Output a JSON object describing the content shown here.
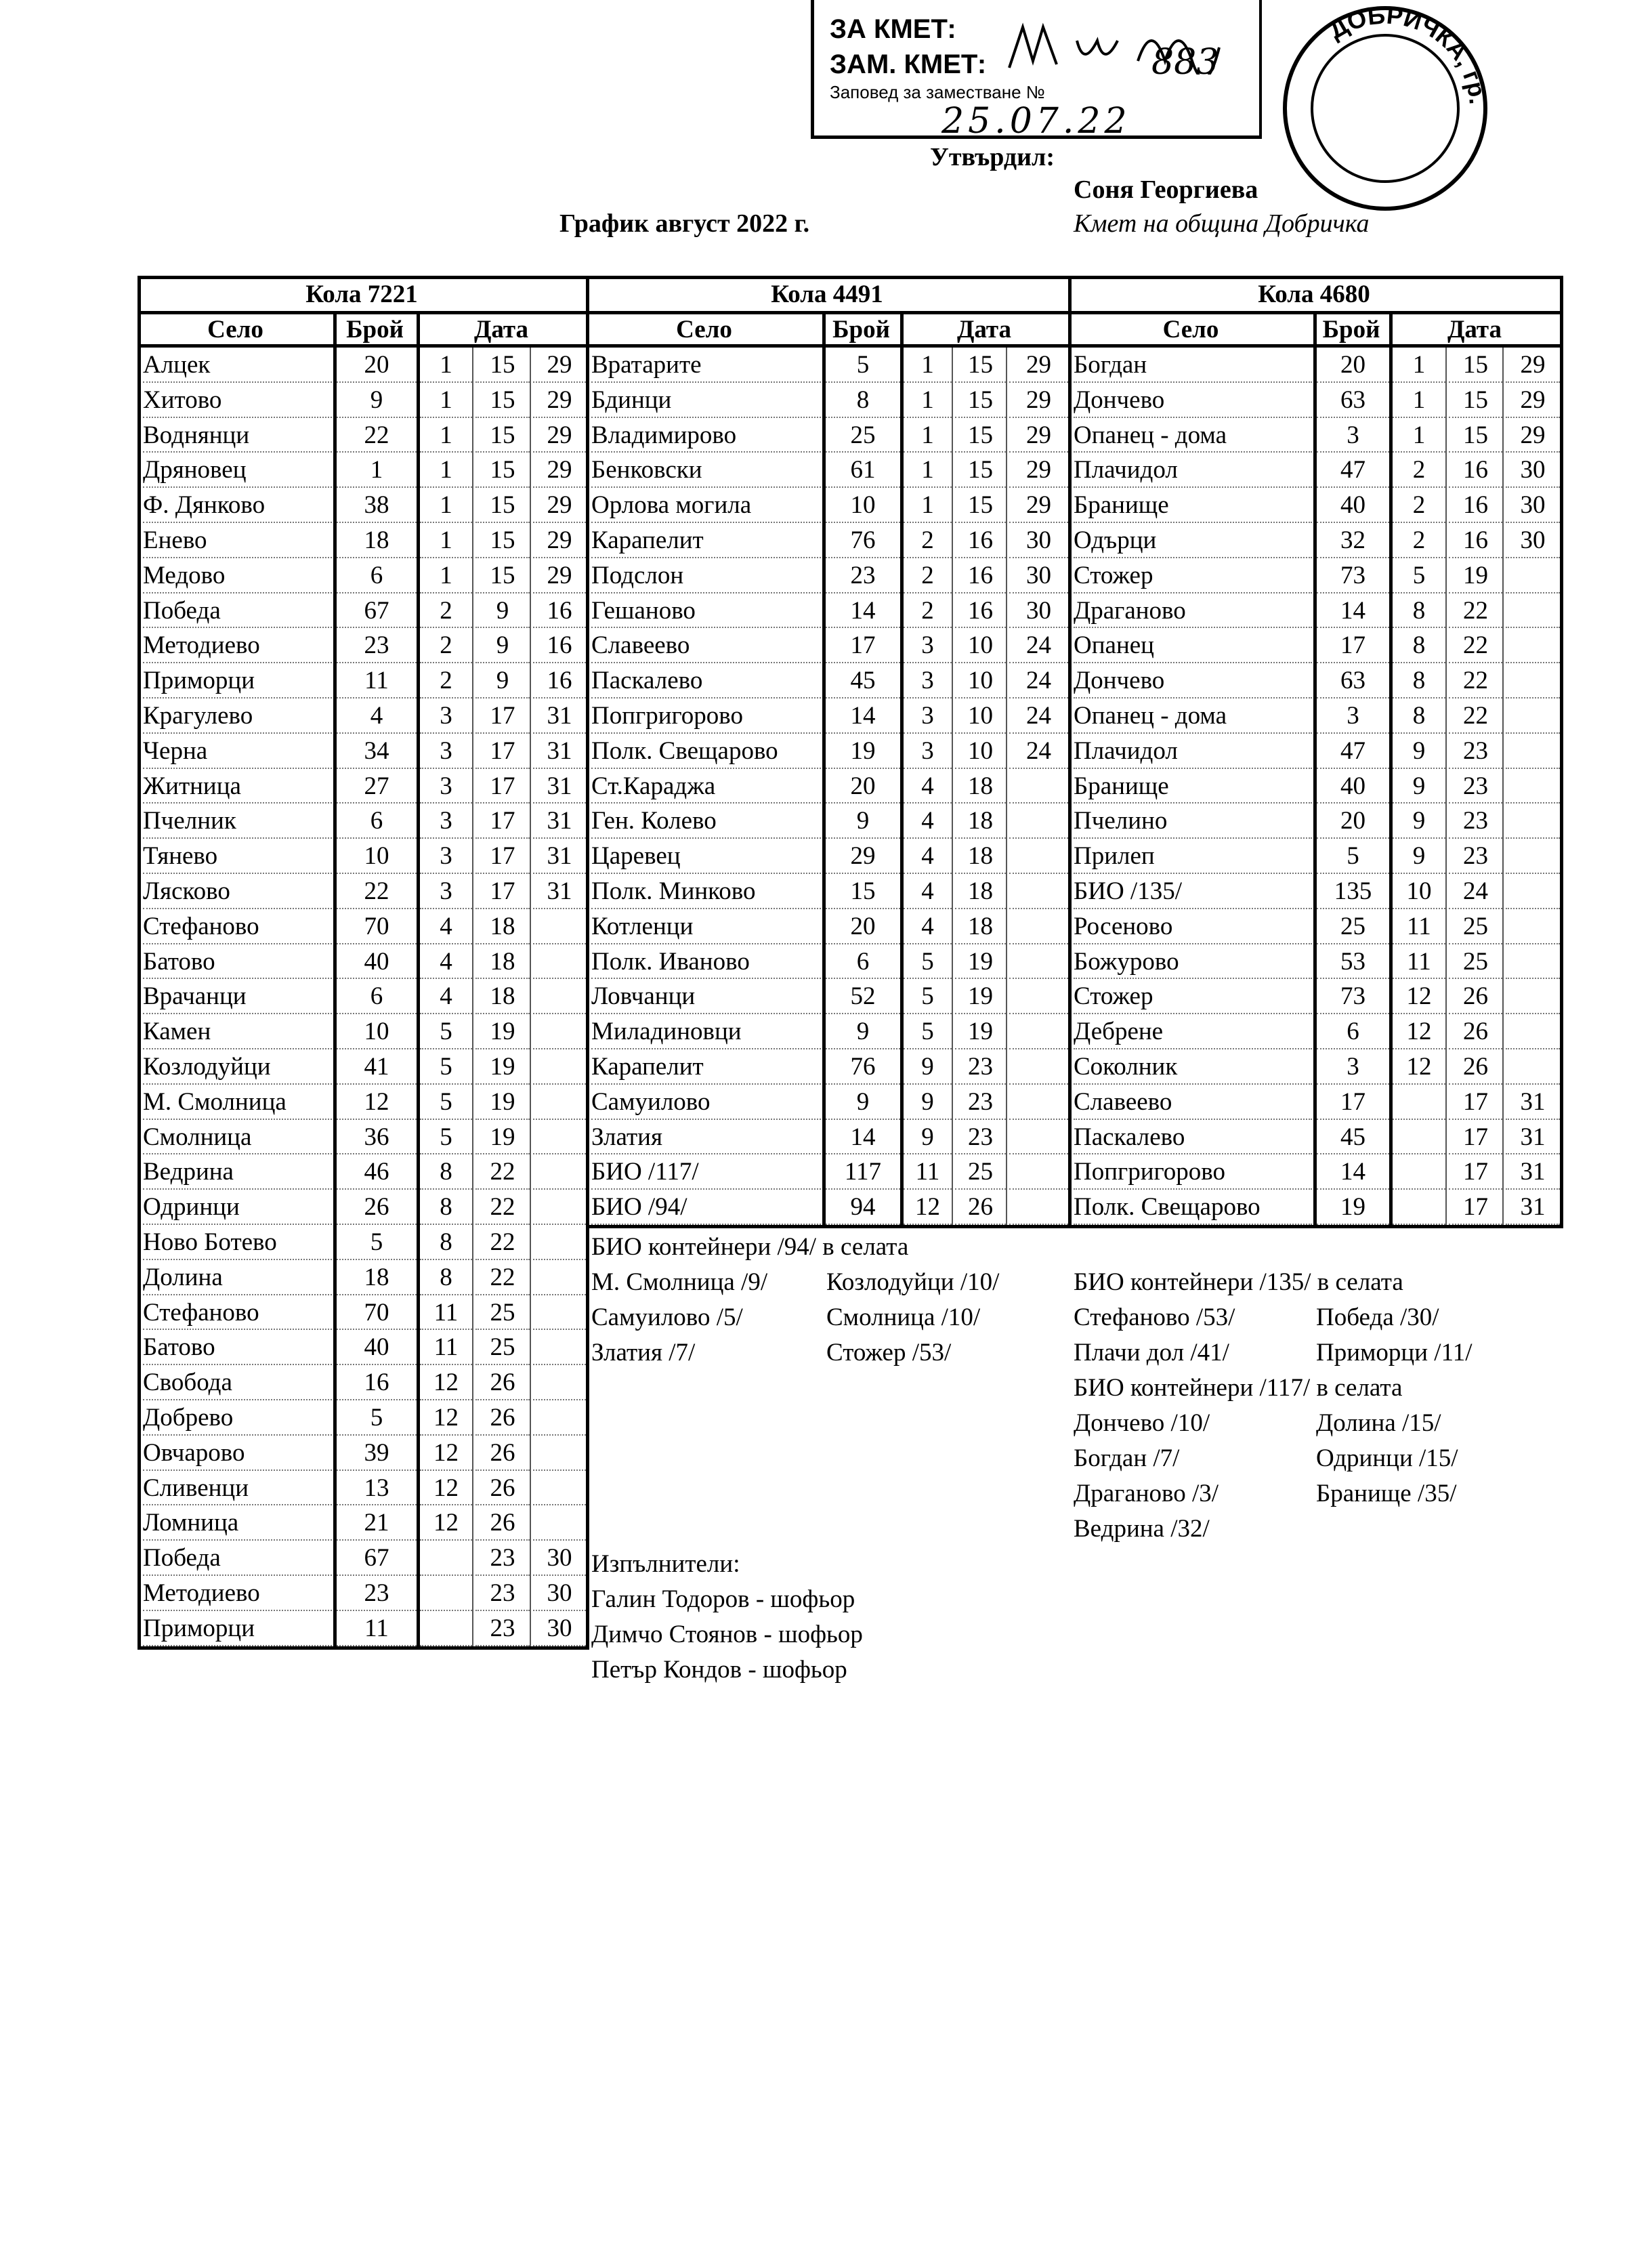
{
  "stamp": {
    "line1": "ЗА КМЕТ:",
    "line2": "ЗАМ. КМЕТ:",
    "line3": "Заповед за заместване №",
    "order_no": "883",
    "date": "25.07.22",
    "seal_text": "ДОБРИЧКА, гр. Добрич"
  },
  "approval": {
    "label": "Утвърдил:",
    "name": "Соня Георгиева",
    "position": "Кмет на община Добричка"
  },
  "title": "График август 2022 г.",
  "headers": {
    "village": "Село",
    "count": "Брой",
    "date": "Дата"
  },
  "tables": [
    {
      "title": "Кола 7221",
      "rows": [
        [
          "Алцек",
          "20",
          "1",
          "15",
          "29"
        ],
        [
          "Хитово",
          "9",
          "1",
          "15",
          "29"
        ],
        [
          "Воднянци",
          "22",
          "1",
          "15",
          "29"
        ],
        [
          "Дряновец",
          "1",
          "1",
          "15",
          "29"
        ],
        [
          "Ф. Дянково",
          "38",
          "1",
          "15",
          "29"
        ],
        [
          "Енево",
          "18",
          "1",
          "15",
          "29"
        ],
        [
          "Медово",
          "6",
          "1",
          "15",
          "29"
        ],
        [
          "Победа",
          "67",
          "2",
          "9",
          "16"
        ],
        [
          "Методиево",
          "23",
          "2",
          "9",
          "16"
        ],
        [
          "Приморци",
          "11",
          "2",
          "9",
          "16"
        ],
        [
          "Крагулево",
          "4",
          "3",
          "17",
          "31"
        ],
        [
          "Черна",
          "34",
          "3",
          "17",
          "31"
        ],
        [
          "Житница",
          "27",
          "3",
          "17",
          "31"
        ],
        [
          "Пчелник",
          "6",
          "3",
          "17",
          "31"
        ],
        [
          "Тянево",
          "10",
          "3",
          "17",
          "31"
        ],
        [
          "Лясково",
          "22",
          "3",
          "17",
          "31"
        ],
        [
          "Стефаново",
          "70",
          "4",
          "18",
          ""
        ],
        [
          "Батово",
          "40",
          "4",
          "18",
          ""
        ],
        [
          "Врачанци",
          "6",
          "4",
          "18",
          ""
        ],
        [
          "Камен",
          "10",
          "5",
          "19",
          ""
        ],
        [
          "Козлодуйци",
          "41",
          "5",
          "19",
          ""
        ],
        [
          "М. Смолница",
          "12",
          "5",
          "19",
          ""
        ],
        [
          "Смолница",
          "36",
          "5",
          "19",
          ""
        ],
        [
          "Ведрина",
          "46",
          "8",
          "22",
          ""
        ],
        [
          "Одринци",
          "26",
          "8",
          "22",
          ""
        ],
        [
          "Ново Ботево",
          "5",
          "8",
          "22",
          ""
        ],
        [
          "Долина",
          "18",
          "8",
          "22",
          ""
        ],
        [
          "Стефаново",
          "70",
          "11",
          "25",
          ""
        ],
        [
          "Батово",
          "40",
          "11",
          "25",
          ""
        ],
        [
          "Свобода",
          "16",
          "12",
          "26",
          ""
        ],
        [
          "Добрево",
          "5",
          "12",
          "26",
          ""
        ],
        [
          "Овчарово",
          "39",
          "12",
          "26",
          ""
        ],
        [
          "Сливенци",
          "13",
          "12",
          "26",
          ""
        ],
        [
          "Ломница",
          "21",
          "12",
          "26",
          ""
        ],
        [
          "Победа",
          "67",
          "",
          "23",
          "30"
        ],
        [
          "Методиево",
          "23",
          "",
          "23",
          "30"
        ],
        [
          "Приморци",
          "11",
          "",
          "23",
          "30"
        ]
      ]
    },
    {
      "title": "Кола 4491",
      "rows": [
        [
          "Вратарите",
          "5",
          "1",
          "15",
          "29"
        ],
        [
          "Бдинци",
          "8",
          "1",
          "15",
          "29"
        ],
        [
          "Владимирово",
          "25",
          "1",
          "15",
          "29"
        ],
        [
          "Бенковски",
          "61",
          "1",
          "15",
          "29"
        ],
        [
          "Орлова могила",
          "10",
          "1",
          "15",
          "29"
        ],
        [
          "Карапелит",
          "76",
          "2",
          "16",
          "30"
        ],
        [
          "Подслон",
          "23",
          "2",
          "16",
          "30"
        ],
        [
          "Гешаново",
          "14",
          "2",
          "16",
          "30"
        ],
        [
          "Славеево",
          "17",
          "3",
          "10",
          "24"
        ],
        [
          "Паскалево",
          "45",
          "3",
          "10",
          "24"
        ],
        [
          "Попгригорово",
          "14",
          "3",
          "10",
          "24"
        ],
        [
          "Полк. Свещарово",
          "19",
          "3",
          "10",
          "24"
        ],
        [
          "Ст.Караджа",
          "20",
          "4",
          "18",
          ""
        ],
        [
          "Ген. Колево",
          "9",
          "4",
          "18",
          ""
        ],
        [
          "Царевец",
          "29",
          "4",
          "18",
          ""
        ],
        [
          "Полк. Минково",
          "15",
          "4",
          "18",
          ""
        ],
        [
          "Котленци",
          "20",
          "4",
          "18",
          ""
        ],
        [
          "Полк. Иваново",
          "6",
          "5",
          "19",
          ""
        ],
        [
          "Ловчанци",
          "52",
          "5",
          "19",
          ""
        ],
        [
          "Миладиновци",
          "9",
          "5",
          "19",
          ""
        ],
        [
          "Карапелит",
          "76",
          "9",
          "23",
          ""
        ],
        [
          "Самуилово",
          "9",
          "9",
          "23",
          ""
        ],
        [
          "Златия",
          "14",
          "9",
          "23",
          ""
        ],
        [
          "БИО /117/",
          "117",
          "11",
          "25",
          ""
        ],
        [
          "БИО /94/",
          "94",
          "12",
          "26",
          ""
        ]
      ]
    },
    {
      "title": "Кола 4680",
      "rows": [
        [
          "Богдан",
          "20",
          "1",
          "15",
          "29"
        ],
        [
          "Дончево",
          "63",
          "1",
          "15",
          "29"
        ],
        [
          "Опанец - дома",
          "3",
          "1",
          "15",
          "29"
        ],
        [
          "Плачидол",
          "47",
          "2",
          "16",
          "30"
        ],
        [
          "Бранище",
          "40",
          "2",
          "16",
          "30"
        ],
        [
          "Одърци",
          "32",
          "2",
          "16",
          "30"
        ],
        [
          "Стожер",
          "73",
          "5",
          "19",
          ""
        ],
        [
          "Драганово",
          "14",
          "8",
          "22",
          ""
        ],
        [
          "Опанец",
          "17",
          "8",
          "22",
          ""
        ],
        [
          "Дончево",
          "63",
          "8",
          "22",
          ""
        ],
        [
          "Опанец - дома",
          "3",
          "8",
          "22",
          ""
        ],
        [
          "Плачидол",
          "47",
          "9",
          "23",
          ""
        ],
        [
          "Бранище",
          "40",
          "9",
          "23",
          ""
        ],
        [
          "Пчелино",
          "20",
          "9",
          "23",
          ""
        ],
        [
          "Прилеп",
          "5",
          "9",
          "23",
          ""
        ],
        [
          "БИО /135/",
          "135",
          "10",
          "24",
          ""
        ],
        [
          "Росеново",
          "25",
          "11",
          "25",
          ""
        ],
        [
          "Божурово",
          "53",
          "11",
          "25",
          ""
        ],
        [
          "Стожер",
          "73",
          "12",
          "26",
          ""
        ],
        [
          "Дебрене",
          "6",
          "12",
          "26",
          ""
        ],
        [
          "Соколник",
          "3",
          "12",
          "26",
          ""
        ],
        [
          "Славеево",
          "17",
          "",
          "17",
          "31"
        ],
        [
          "Паскалево",
          "45",
          "",
          "17",
          "31"
        ],
        [
          "Попгригорово",
          "14",
          "",
          "17",
          "31"
        ],
        [
          "Полк. Свещарово",
          "19",
          "",
          "17",
          "31"
        ]
      ]
    }
  ],
  "notes2": {
    "heading": "БИО контейнери /94/ в селата",
    "items": [
      [
        "М. Смолница /9/",
        "Козлодуйци /10/"
      ],
      [
        "Самуилово /5/",
        "Смолница /10/"
      ],
      [
        "Златия /7/",
        "Стожер /53/"
      ]
    ]
  },
  "notes3": {
    "heading1": "БИО контейнери /135/ в селата",
    "items1": [
      [
        "Стефаново /53/",
        "Победа /30/"
      ],
      [
        "Плачи дол /41/",
        "Приморци /11/"
      ]
    ],
    "heading2": "БИО контейнери /117/ в селата",
    "items2": [
      [
        "Дончево /10/",
        "Долина /15/"
      ],
      [
        "Богдан /7/",
        "Одринци /15/"
      ],
      [
        "Драганово /3/",
        "Бранище /35/"
      ],
      [
        "Ведрина /32/",
        ""
      ]
    ]
  },
  "executors": {
    "heading": "Изпълнители:",
    "names": [
      "Галин Тодоров - шофьор",
      "Димчо Стоянов - шофьор",
      "Петър Кондов - шофьор"
    ]
  }
}
